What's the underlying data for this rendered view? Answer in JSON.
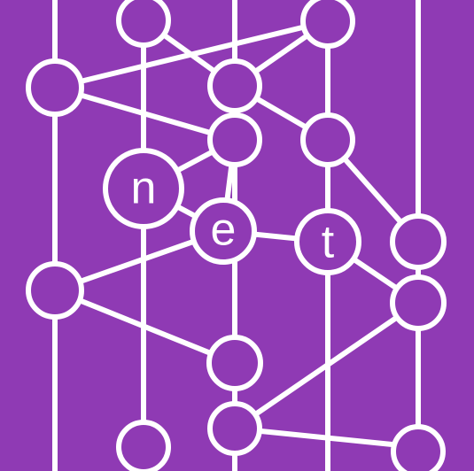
{
  "logo": {
    "letters": [
      "n",
      "e",
      "t"
    ]
  },
  "colors": {
    "background": "#8f3ab4",
    "foreground": "#ffffff"
  }
}
